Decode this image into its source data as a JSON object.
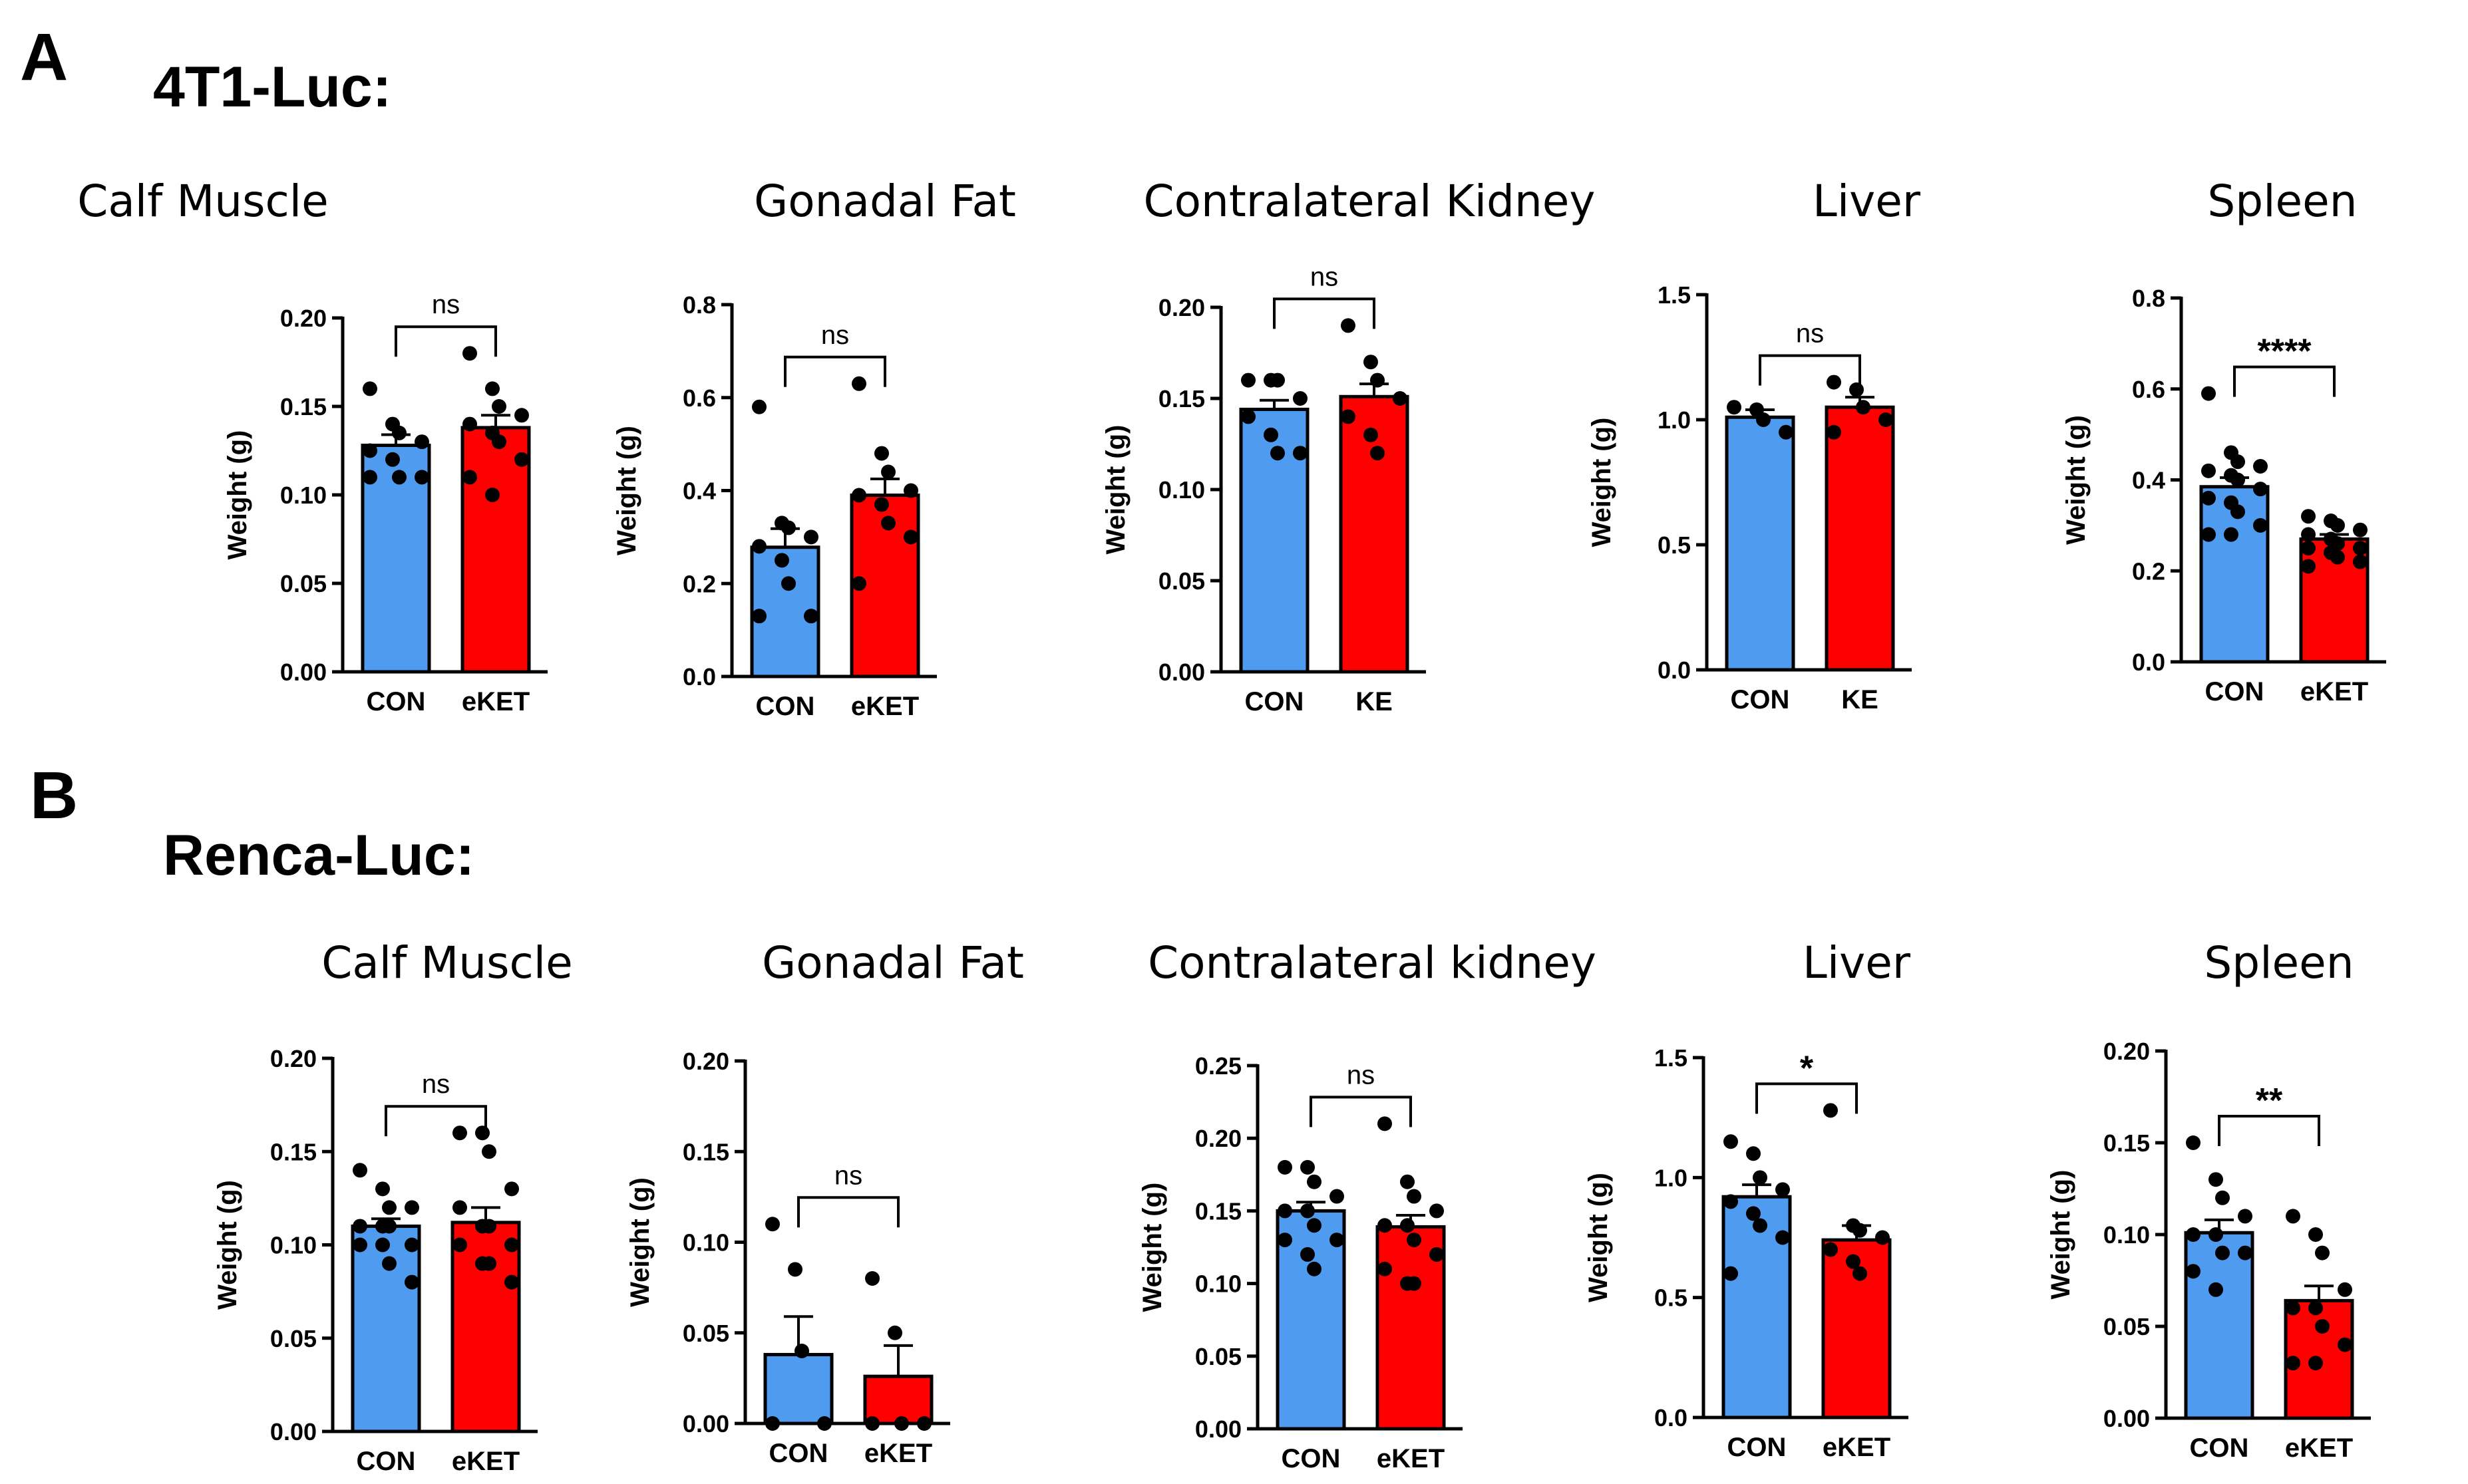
{
  "panels": [
    {
      "letter": "A",
      "row_title": "4T1-Luc:"
    },
    {
      "letter": "B",
      "row_title": "Renca-Luc:"
    }
  ],
  "colors": {
    "con": "#4f9bf0",
    "treat": "#ff0000",
    "axis": "#000000",
    "point": "#000000"
  },
  "chart_data": [
    {
      "type": "bar",
      "panel": "A",
      "title": "Calf Muscle",
      "ylabel": "Weight (g)",
      "ylim": [
        0,
        0.2
      ],
      "yticks": [
        "0.00",
        "0.05",
        "0.10",
        "0.15",
        "0.20"
      ],
      "categories": [
        "CON",
        "eKET"
      ],
      "values": [
        0.128,
        0.138
      ],
      "errors": [
        0.006,
        0.007
      ],
      "significance": "ns",
      "points": [
        [
          0.16,
          0.14,
          0.135,
          0.13,
          0.125,
          0.12,
          0.11,
          0.11,
          0.11
        ],
        [
          0.18,
          0.16,
          0.15,
          0.145,
          0.14,
          0.135,
          0.13,
          0.12,
          0.11,
          0.1
        ]
      ]
    },
    {
      "type": "bar",
      "panel": "A",
      "title": "Gonadal Fat",
      "ylabel": "Weight (g)",
      "ylim": [
        0,
        0.8
      ],
      "yticks": [
        "0.0",
        "0.2",
        "0.4",
        "0.6",
        "0.8"
      ],
      "categories": [
        "CON",
        "eKET"
      ],
      "values": [
        0.278,
        0.39
      ],
      "errors": [
        0.04,
        0.035
      ],
      "significance": "ns",
      "points": [
        [
          0.58,
          0.33,
          0.32,
          0.3,
          0.28,
          0.25,
          0.2,
          0.13,
          0.13
        ],
        [
          0.63,
          0.48,
          0.44,
          0.4,
          0.39,
          0.37,
          0.33,
          0.3,
          0.2
        ]
      ]
    },
    {
      "type": "bar",
      "panel": "A",
      "title": "Contralateral Kidney",
      "ylabel": "Weight (g)",
      "ylim": [
        0,
        0.2
      ],
      "yticks": [
        "0.00",
        "0.05",
        "0.10",
        "0.15",
        "0.20"
      ],
      "categories": [
        "CON",
        "KE"
      ],
      "values": [
        0.144,
        0.151
      ],
      "errors": [
        0.005,
        0.007
      ],
      "significance": "ns",
      "points": [
        [
          0.16,
          0.16,
          0.16,
          0.15,
          0.14,
          0.13,
          0.12,
          0.12
        ],
        [
          0.19,
          0.17,
          0.16,
          0.15,
          0.14,
          0.13,
          0.12
        ]
      ]
    },
    {
      "type": "bar",
      "panel": "A",
      "title": "Liver",
      "ylabel": "Weight (g)",
      "ylim": [
        0,
        1.5
      ],
      "yticks": [
        "0.0",
        "0.5",
        "1.0",
        "1.5"
      ],
      "categories": [
        "CON",
        "KE"
      ],
      "values": [
        1.01,
        1.05
      ],
      "errors": [
        0.03,
        0.04
      ],
      "significance": "ns",
      "points": [
        [
          1.05,
          1.04,
          1.0,
          0.95
        ],
        [
          1.15,
          1.12,
          1.05,
          1.0,
          0.95
        ]
      ]
    },
    {
      "type": "bar",
      "panel": "A",
      "title": "Spleen",
      "ylabel": "Weight (g)",
      "ylim": [
        0,
        0.8
      ],
      "yticks": [
        "0.0",
        "0.2",
        "0.4",
        "0.6",
        "0.8"
      ],
      "categories": [
        "CON",
        "eKET"
      ],
      "values": [
        0.385,
        0.27
      ],
      "errors": [
        0.02,
        0.01
      ],
      "significance": "****",
      "points": [
        [
          0.59,
          0.46,
          0.44,
          0.43,
          0.42,
          0.41,
          0.4,
          0.38,
          0.36,
          0.35,
          0.33,
          0.3,
          0.28,
          0.28
        ],
        [
          0.32,
          0.31,
          0.3,
          0.29,
          0.28,
          0.27,
          0.26,
          0.25,
          0.25,
          0.24,
          0.23,
          0.22,
          0.21
        ]
      ]
    },
    {
      "type": "bar",
      "panel": "B",
      "title": "Calf Muscle",
      "ylabel": "Weight (g)",
      "ylim": [
        0,
        0.2
      ],
      "yticks": [
        "0.00",
        "0.05",
        "0.10",
        "0.15",
        "0.20"
      ],
      "categories": [
        "CON",
        "eKET"
      ],
      "values": [
        0.11,
        0.112
      ],
      "errors": [
        0.004,
        0.008
      ],
      "significance": "ns",
      "points": [
        [
          0.14,
          0.13,
          0.12,
          0.12,
          0.11,
          0.11,
          0.11,
          0.1,
          0.1,
          0.1,
          0.09,
          0.08
        ],
        [
          0.16,
          0.16,
          0.15,
          0.13,
          0.12,
          0.11,
          0.11,
          0.1,
          0.1,
          0.09,
          0.09,
          0.08
        ]
      ]
    },
    {
      "type": "bar",
      "panel": "B",
      "title": "Gonadal Fat",
      "ylabel": "Weight (g)",
      "ylim": [
        0,
        0.2
      ],
      "yticks": [
        "0.00",
        "0.05",
        "0.10",
        "0.15",
        "0.20"
      ],
      "categories": [
        "CON",
        "eKET"
      ],
      "values": [
        0.038,
        0.026
      ],
      "errors": [
        0.021,
        0.017
      ],
      "significance": "ns",
      "points": [
        [
          0.11,
          0.085,
          0.04,
          0.0,
          0.0
        ],
        [
          0.08,
          0.05,
          0.0,
          0.0,
          0.0
        ]
      ]
    },
    {
      "type": "bar",
      "panel": "B",
      "title": "Contralateral kidney",
      "ylabel": "Weight (g)",
      "ylim": [
        0,
        0.25
      ],
      "yticks": [
        "0.00",
        "0.05",
        "0.10",
        "0.15",
        "0.20",
        "0.25"
      ],
      "categories": [
        "CON",
        "eKET"
      ],
      "values": [
        0.15,
        0.139
      ],
      "errors": [
        0.006,
        0.008
      ],
      "significance": "ns",
      "points": [
        [
          0.18,
          0.18,
          0.17,
          0.16,
          0.15,
          0.15,
          0.14,
          0.13,
          0.13,
          0.12,
          0.11
        ],
        [
          0.21,
          0.17,
          0.16,
          0.15,
          0.14,
          0.14,
          0.13,
          0.12,
          0.11,
          0.1,
          0.1
        ]
      ]
    },
    {
      "type": "bar",
      "panel": "B",
      "title": "Liver",
      "ylabel": "Weight (g)",
      "ylim": [
        0,
        1.5
      ],
      "yticks": [
        "0.0",
        "0.5",
        "1.0",
        "1.5"
      ],
      "categories": [
        "CON",
        "eKET"
      ],
      "values": [
        0.92,
        0.74
      ],
      "errors": [
        0.05,
        0.06
      ],
      "significance": "*",
      "points": [
        [
          1.15,
          1.1,
          1.0,
          0.95,
          0.9,
          0.85,
          0.8,
          0.75,
          0.6
        ],
        [
          1.28,
          0.8,
          0.78,
          0.75,
          0.7,
          0.65,
          0.6
        ]
      ]
    },
    {
      "type": "bar",
      "panel": "B",
      "title": "Spleen",
      "ylabel": "Weight (g)",
      "ylim": [
        0,
        0.2
      ],
      "yticks": [
        "0.00",
        "0.05",
        "0.10",
        "0.15",
        "0.20"
      ],
      "categories": [
        "CON",
        "eKET"
      ],
      "values": [
        0.101,
        0.064
      ],
      "errors": [
        0.007,
        0.008
      ],
      "significance": "**",
      "points": [
        [
          0.15,
          0.13,
          0.12,
          0.11,
          0.1,
          0.1,
          0.09,
          0.09,
          0.08,
          0.07
        ],
        [
          0.11,
          0.1,
          0.09,
          0.07,
          0.06,
          0.06,
          0.05,
          0.04,
          0.03,
          0.03
        ]
      ]
    }
  ]
}
